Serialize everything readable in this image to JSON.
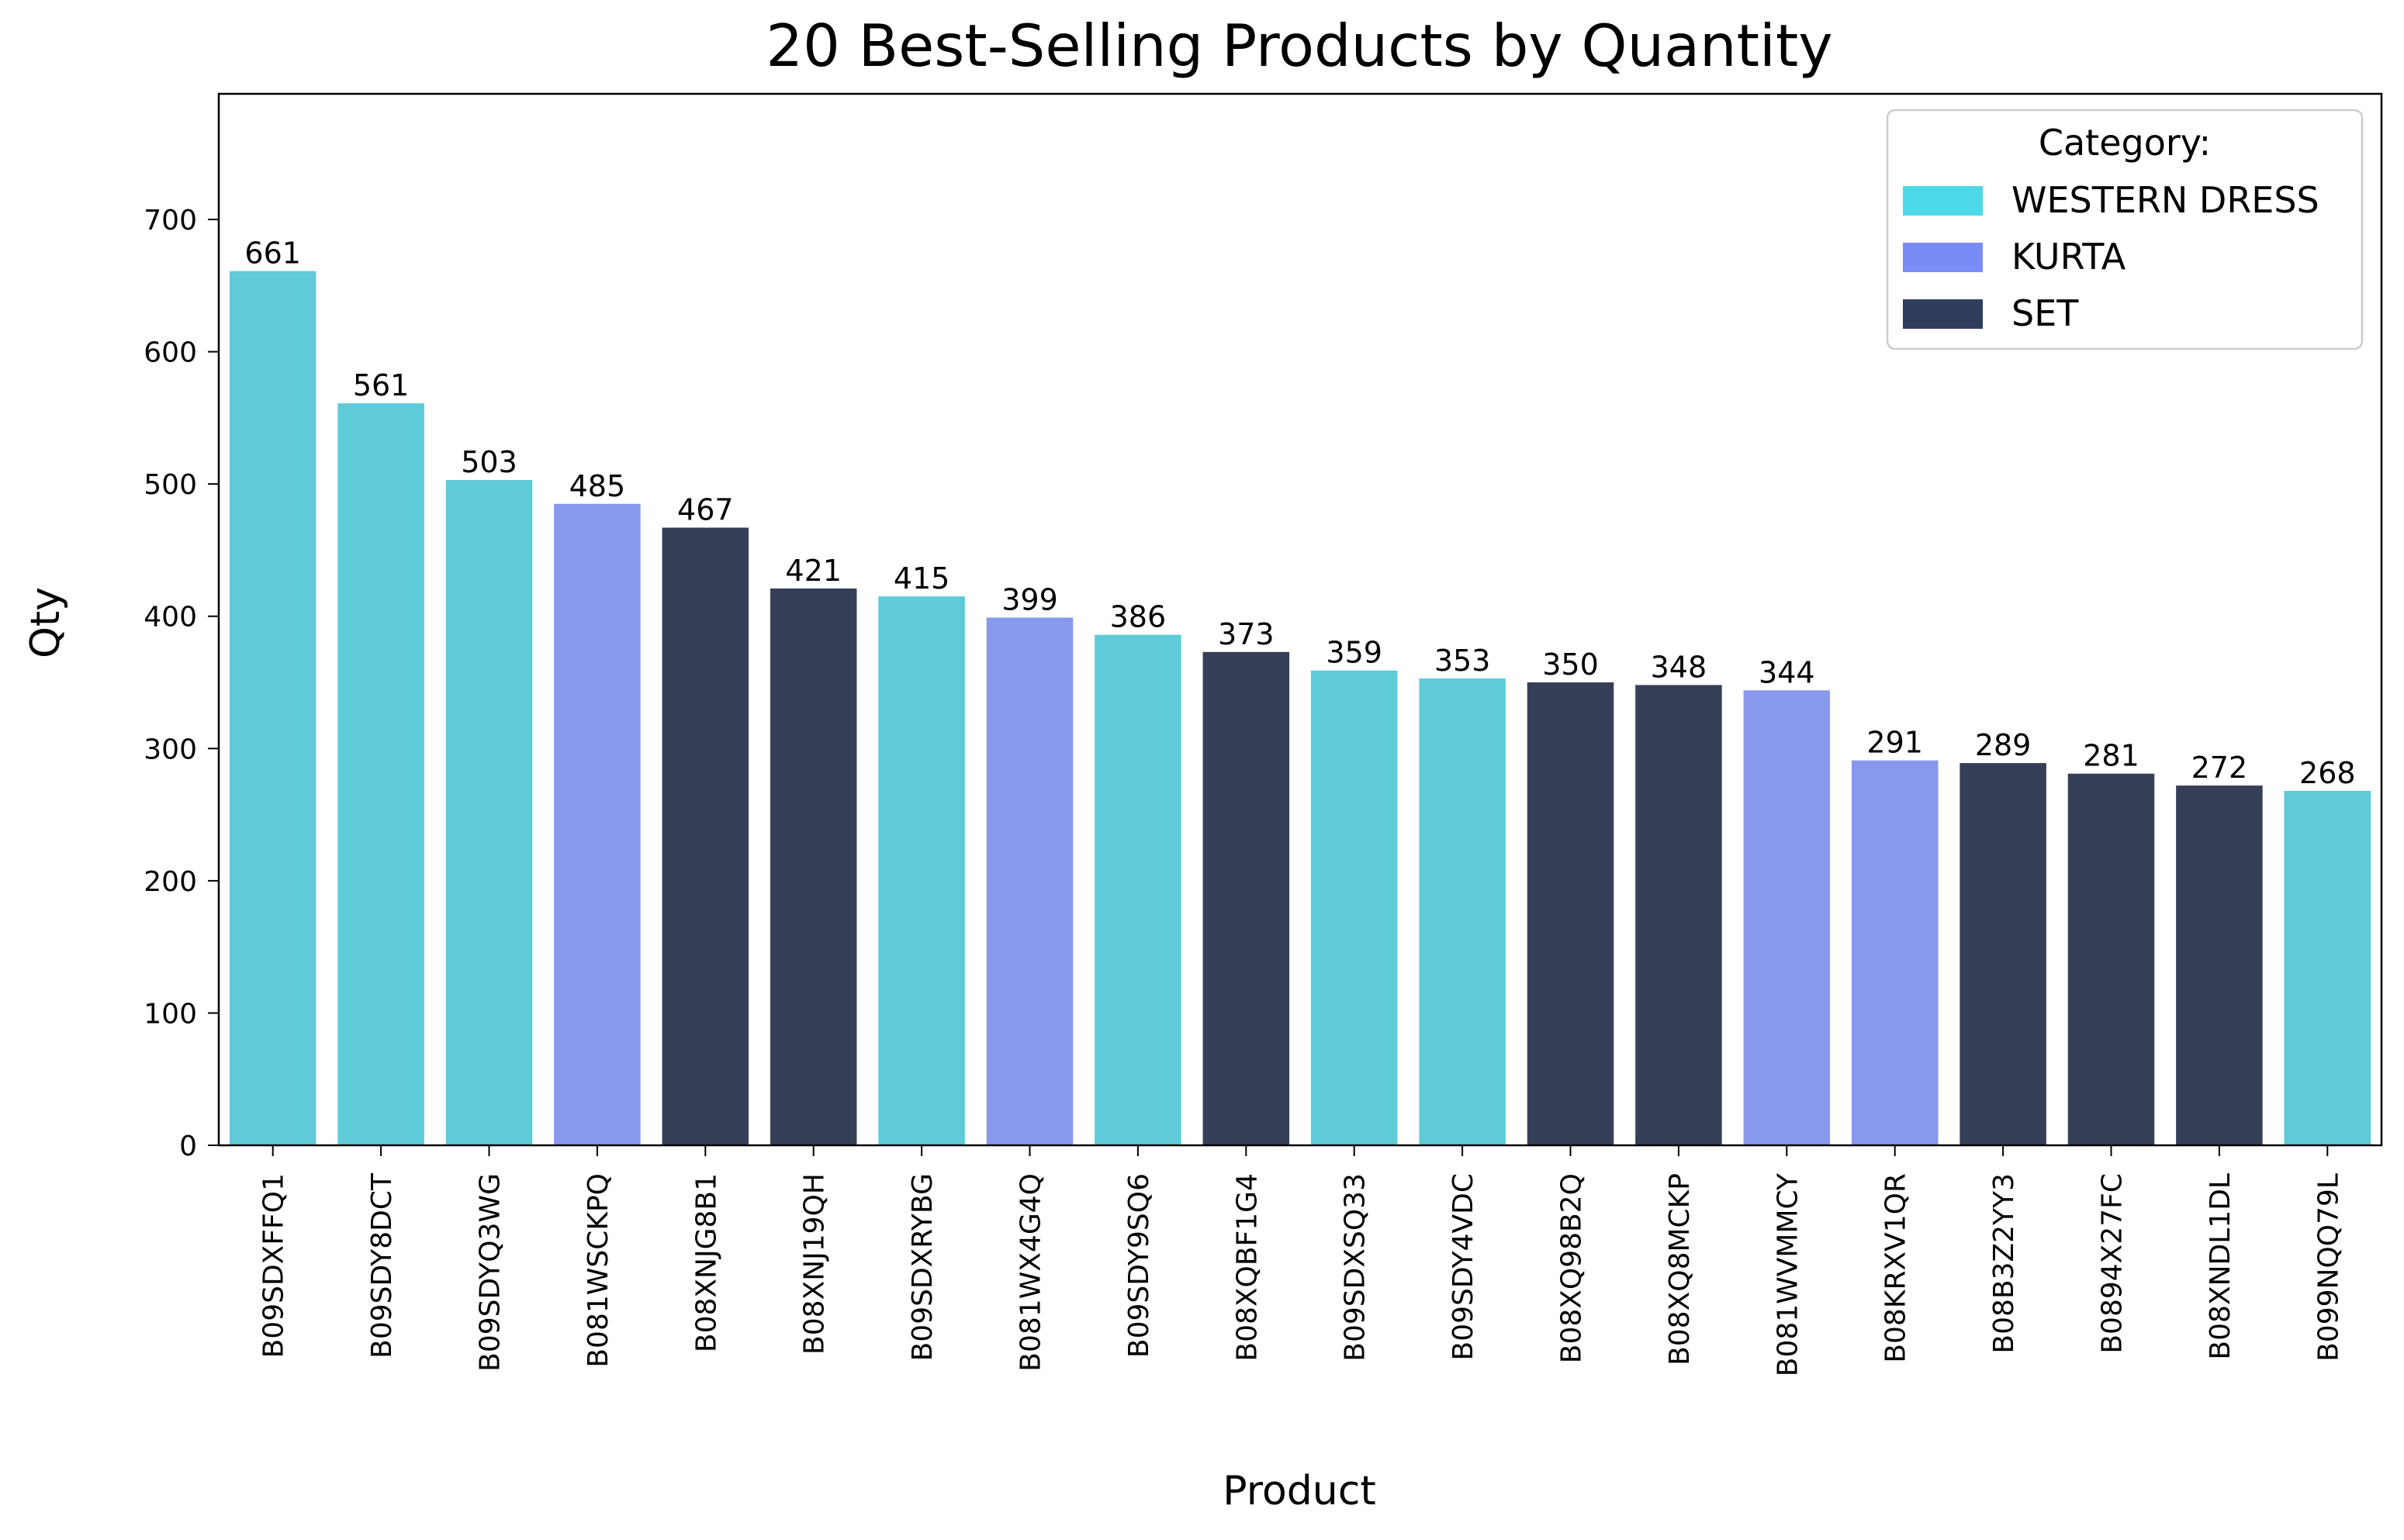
{
  "chart_data": {
    "type": "bar",
    "title": "20 Best-Selling Products by Quantity",
    "xlabel": "Product",
    "ylabel": "Qty",
    "ylim": [
      0,
      795
    ],
    "yticks": [
      0,
      100,
      200,
      300,
      400,
      500,
      600,
      700
    ],
    "grid": false,
    "legend": {
      "title": "Category:",
      "placement": "top-right",
      "entries": [
        {
          "label": "WESTERN DRESS",
          "color": "#4DD8E8"
        },
        {
          "label": "KURTA",
          "color": "#7A8BF5"
        },
        {
          "label": "SET",
          "color": "#2F3D5E"
        }
      ]
    },
    "bar_colors": {
      "WESTERN DRESS": "#5FCAD8",
      "KURTA": "#8898EC",
      "SET": "#363F58"
    },
    "categories": [
      "B09SDXFFQ1",
      "B09SDY8DCT",
      "B09SDYQ3WG",
      "B081WSCKPQ",
      "B08XNJG8B1",
      "B08XNJ19QH",
      "B09SDXRYBG",
      "B081WX4G4Q",
      "B09SDY9SQ6",
      "B08XQBF1G4",
      "B09SDXSQ33",
      "B09SDY4VDC",
      "B08XQ98B2Q",
      "B08XQ8MCKP",
      "B081WVMMCY",
      "B08KRXV1QR",
      "B08B3Z2YY3",
      "B0894X27FC",
      "B08XNDL1DL",
      "B099NQQ79L"
    ],
    "values": [
      661,
      561,
      503,
      485,
      467,
      421,
      415,
      399,
      386,
      373,
      359,
      353,
      350,
      348,
      344,
      291,
      289,
      281,
      272,
      268
    ],
    "category_of_bar": [
      "WESTERN DRESS",
      "WESTERN DRESS",
      "WESTERN DRESS",
      "KURTA",
      "SET",
      "SET",
      "WESTERN DRESS",
      "KURTA",
      "WESTERN DRESS",
      "SET",
      "WESTERN DRESS",
      "WESTERN DRESS",
      "SET",
      "SET",
      "KURTA",
      "KURTA",
      "SET",
      "SET",
      "SET",
      "WESTERN DRESS"
    ]
  }
}
